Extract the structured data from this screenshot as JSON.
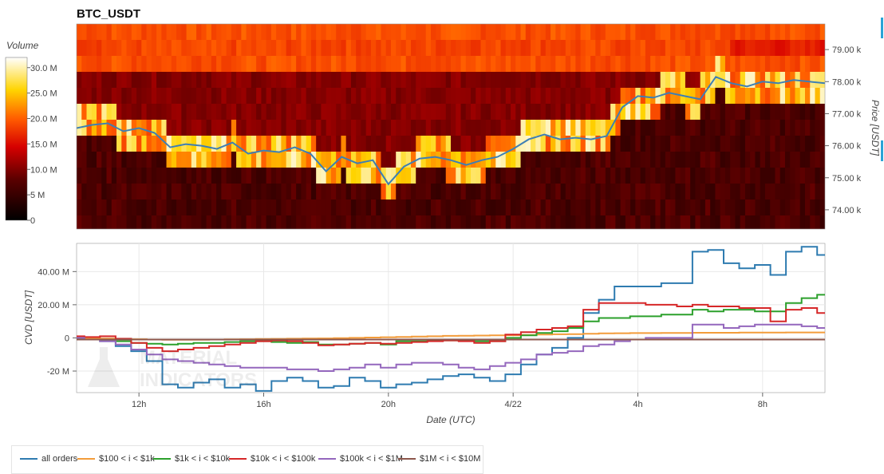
{
  "chart_data": [
    {
      "type": "heatmap",
      "title": "BTC_USDT",
      "colorbar": {
        "title": "Volume",
        "ticks": [
          "0",
          "5 M",
          "10.0 M",
          "15.0 M",
          "20.0 M",
          "25.0 M",
          "30.0 M"
        ],
        "min": 0,
        "max": 32000000
      },
      "ylabel": "Price [USDT]",
      "yticks": [
        "74.00 k",
        "75.00 k",
        "76.00 k",
        "77.00 k",
        "78.00 k",
        "79.00 k"
      ],
      "yvalues": [
        74000,
        75000,
        76000,
        77000,
        78000,
        79000
      ],
      "ylim": [
        73400,
        79800
      ],
      "price_line": {
        "color": "#3d7fb5",
        "x": [
          10.0,
          10.5,
          11.0,
          11.5,
          12.0,
          12.5,
          13.0,
          13.5,
          14.0,
          14.5,
          15.0,
          15.5,
          16.0,
          16.5,
          17.0,
          17.5,
          18.0,
          18.5,
          19.0,
          19.5,
          20.0,
          20.5,
          21.0,
          21.5,
          22.0,
          22.5,
          23.0,
          23.5,
          24.0,
          24.5,
          25.0,
          25.5,
          26.0,
          26.5,
          27.0,
          27.5,
          28.0,
          28.5,
          29.0,
          29.5,
          30.0,
          30.5,
          31.0,
          31.5,
          32.0,
          32.5,
          33.0,
          33.5,
          34.0
        ],
        "y": [
          76550,
          76650,
          76700,
          76450,
          76550,
          76400,
          75950,
          76050,
          76000,
          75900,
          76100,
          75750,
          75850,
          75800,
          75950,
          75750,
          75200,
          75650,
          75450,
          75550,
          74800,
          75350,
          75600,
          75650,
          75550,
          75400,
          75550,
          75650,
          75900,
          76200,
          76350,
          76200,
          76250,
          76200,
          76300,
          77200,
          77550,
          77500,
          77650,
          77550,
          77450,
          78150,
          77950,
          77850,
          78000,
          77950,
          78050,
          78000,
          77950
        ]
      }
    },
    {
      "type": "line",
      "xlabel": "Date (UTC)",
      "ylabel": "CVD [USDT]",
      "xticks": [
        "12h",
        "16h",
        "20h",
        "4/22",
        "4h",
        "8h"
      ],
      "xtick_hours": [
        12,
        16,
        20,
        24,
        28,
        32
      ],
      "xlim": [
        10.0,
        34.0
      ],
      "yticks": [
        "-20 M",
        "0",
        "20.00 M",
        "40.00 M"
      ],
      "ytick_values": [
        -20,
        0,
        20,
        40
      ],
      "ylim": [
        -33,
        57
      ],
      "x": [
        10.0,
        10.5,
        11.0,
        11.5,
        12.0,
        12.5,
        13.0,
        13.5,
        14.0,
        14.5,
        15.0,
        15.5,
        16.0,
        16.5,
        17.0,
        17.5,
        18.0,
        18.5,
        19.0,
        19.5,
        20.0,
        20.5,
        21.0,
        21.5,
        22.0,
        22.5,
        23.0,
        23.5,
        24.0,
        24.5,
        25.0,
        25.5,
        26.0,
        26.5,
        27.0,
        27.5,
        28.0,
        28.5,
        29.0,
        29.5,
        30.0,
        30.5,
        31.0,
        31.5,
        32.0,
        32.5,
        33.0,
        33.5,
        34.0
      ],
      "series": [
        {
          "name": "all orders",
          "color": "#2e7bb0",
          "values": [
            0,
            -1,
            -2,
            -5,
            -8,
            -14,
            -28,
            -30,
            -27,
            -25,
            -30,
            -28,
            -32,
            -26,
            -24,
            -26,
            -30,
            -29,
            -24,
            -26,
            -30,
            -28,
            -27,
            -25,
            -23,
            -22,
            -24,
            -26,
            -22,
            -16,
            -10,
            -6,
            0,
            15,
            23,
            31,
            31,
            31,
            33,
            33,
            52,
            53,
            45,
            42,
            44,
            38,
            52,
            55,
            50
          ]
        },
        {
          "name": "$100 < i < $1k",
          "color": "#f39c3a",
          "values": [
            0,
            -0.2,
            -0.4,
            -0.6,
            -0.8,
            -1,
            -1.1,
            -1.1,
            -1.1,
            -1,
            -0.9,
            -0.8,
            -0.7,
            -0.6,
            -0.5,
            -0.4,
            -0.3,
            -0.2,
            0,
            0.2,
            0.4,
            0.6,
            0.8,
            1,
            1.2,
            1.3,
            1.4,
            1.5,
            1.6,
            1.8,
            2,
            2.2,
            2.3,
            2.5,
            2.7,
            2.8,
            2.9,
            2.9,
            3,
            3,
            3.1,
            3.1,
            3.1,
            3.2,
            3.2,
            3.2,
            3.3,
            3.3,
            3.3
          ]
        },
        {
          "name": "$1k < i < $10k",
          "color": "#2ca02c",
          "values": [
            0,
            -1,
            -1.5,
            -2,
            -3,
            -3.5,
            -4,
            -3.5,
            -3,
            -3,
            -2.5,
            -2,
            -2,
            -2.5,
            -3,
            -2.5,
            -4,
            -4,
            -3.5,
            -3,
            -4,
            -2,
            -2,
            -1.5,
            -1.5,
            -1.5,
            -2,
            -2,
            0,
            1.5,
            3,
            4,
            6,
            10,
            12,
            12,
            13,
            13,
            14,
            14,
            17,
            16,
            17,
            17,
            16,
            16,
            21,
            24,
            26
          ]
        },
        {
          "name": "$10k < i < $100k",
          "color": "#d62728",
          "values": [
            1,
            0.5,
            1,
            -0.5,
            -3,
            -6,
            -8,
            -7,
            -6,
            -5,
            -4,
            -3,
            -2,
            -1.5,
            -2,
            -3,
            -4.5,
            -4,
            -3.5,
            -3,
            -3.5,
            -3,
            -2.5,
            -2,
            -1.5,
            -2,
            -3,
            -2,
            2,
            3.5,
            5,
            6,
            7,
            17,
            21,
            21,
            21,
            20,
            20,
            19,
            20,
            19,
            19,
            18,
            18,
            10,
            17,
            18,
            15
          ]
        },
        {
          "name": "$100k < i < $1M",
          "color": "#9467bd",
          "values": [
            0,
            -1,
            -2,
            -4,
            -7,
            -10,
            -13,
            -14,
            -15,
            -16,
            -17,
            -18,
            -18,
            -18,
            -19,
            -19,
            -20,
            -19,
            -18,
            -16,
            -18,
            -16,
            -15,
            -15,
            -16,
            -18,
            -19,
            -17,
            -15,
            -13,
            -10,
            -9,
            -8,
            -5,
            -4,
            -2,
            -1,
            0,
            0,
            0,
            8,
            8,
            6,
            7,
            8,
            8,
            8,
            7,
            6
          ]
        },
        {
          "name": "$1M < i < $10M",
          "color": "#8c564b",
          "values": [
            -1,
            -1,
            -1,
            -1,
            -1,
            -1,
            -1,
            -1,
            -1,
            -1,
            -1,
            -1,
            -1,
            -1,
            -1,
            -1,
            -1,
            -1,
            -1,
            -1,
            -1,
            -1,
            -1,
            -1,
            -1,
            -1,
            -1,
            -1,
            -1,
            -1,
            -1,
            -1,
            -1,
            -1,
            -1,
            -1,
            -1,
            -1,
            -1,
            -1,
            -1,
            -1,
            -1,
            -1,
            -1,
            -1,
            -1,
            -1,
            -1
          ]
        }
      ],
      "legend_position": "bottom-left"
    }
  ],
  "watermark": {
    "text_lines": [
      "MATERIAL",
      "INDICATORS"
    ]
  }
}
